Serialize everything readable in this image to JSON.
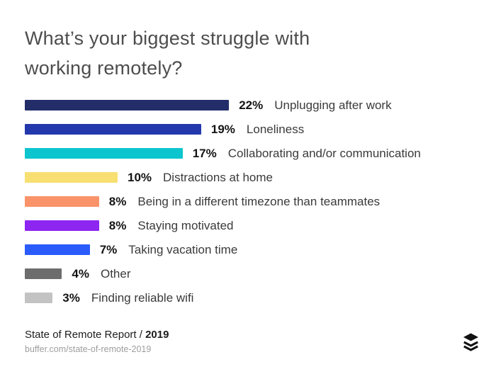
{
  "header": {
    "title_lines": [
      "What’s your biggest struggle with",
      "working remotely?"
    ]
  },
  "chart_data": {
    "type": "bar",
    "orientation": "horizontal",
    "title": "What’s your biggest struggle with working remotely?",
    "unit": "%",
    "xlim": [
      0,
      22
    ],
    "grid": false,
    "legend": false,
    "categories": [
      "Unplugging after work",
      "Loneliness",
      "Collaborating and/or communication",
      "Distractions at home",
      "Being in a different timezone than teammates",
      "Staying motivated",
      "Taking vacation time",
      "Other",
      "Finding reliable wifi"
    ],
    "values": [
      22,
      19,
      17,
      10,
      8,
      8,
      7,
      4,
      3
    ],
    "value_labels": [
      "22%",
      "19%",
      "17%",
      "10%",
      "8%",
      "8%",
      "7%",
      "4%",
      "3%"
    ],
    "bar_colors": [
      "#232d69",
      "#2438ad",
      "#0cc5ce",
      "#f8df72",
      "#fa9369",
      "#8e26f2",
      "#2b5bfb",
      "#6d6d6d",
      "#c3c3c3"
    ]
  },
  "footer": {
    "report_name": "State of Remote Report /",
    "report_year": "2019",
    "url": "buffer.com/state-of-remote-2019",
    "logo": "buffer-logo",
    "logo_color": "#111111"
  }
}
